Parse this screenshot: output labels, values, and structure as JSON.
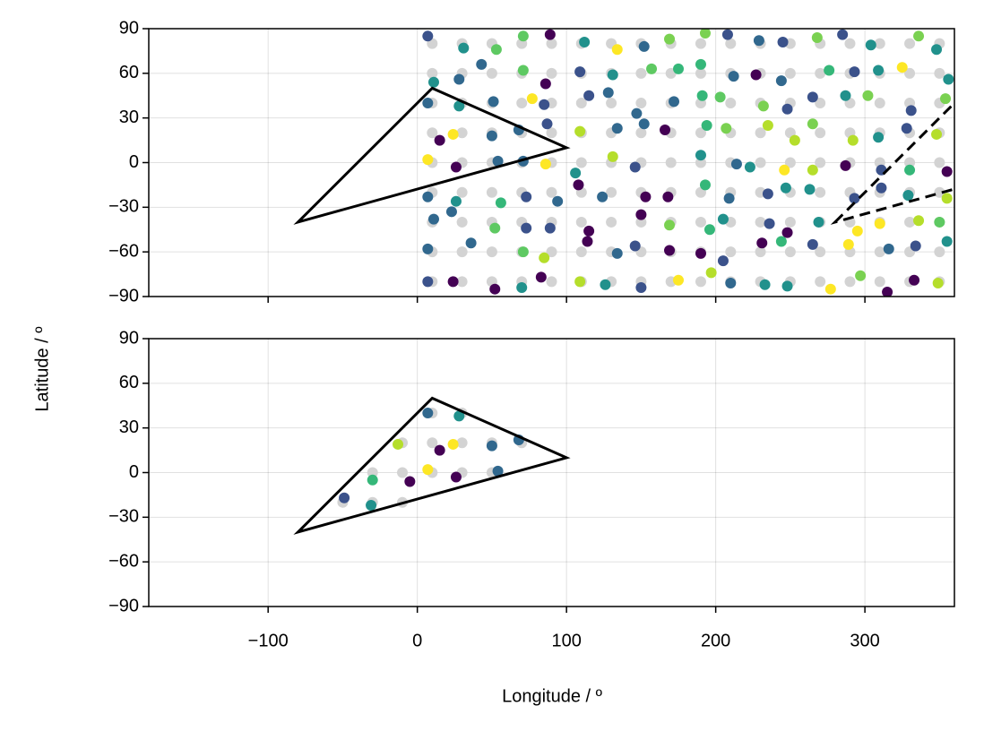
{
  "chart_data": [
    {
      "type": "scatter",
      "ylabel": "Latitude / º",
      "xlim": [
        -180,
        360
      ],
      "ylim": [
        -90,
        90
      ],
      "xticks": [
        {
          "value": -100,
          "label": "−100"
        },
        0,
        100,
        200,
        300
      ],
      "yticks": [
        {
          "value": -90,
          "label": "−90"
        },
        {
          "value": -60,
          "label": "−60"
        },
        {
          "value": -30,
          "label": "−30"
        },
        0,
        30,
        60,
        90
      ],
      "xticklabels": false,
      "grid": true,
      "series": [
        {
          "color": "#d3d3d3",
          "x": [
            10,
            30,
            50,
            70,
            90,
            110,
            130,
            150,
            170,
            190,
            210,
            230,
            250,
            270,
            290,
            310,
            330,
            350,
            10,
            30,
            50,
            70,
            90,
            110,
            130,
            150,
            170,
            190,
            210,
            230,
            250,
            270,
            290,
            310,
            330,
            350,
            10,
            30,
            50,
            70,
            90,
            110,
            130,
            150,
            170,
            190,
            210,
            230,
            250,
            270,
            290,
            310,
            330,
            350,
            10,
            30,
            50,
            70,
            90,
            110,
            130,
            150,
            170,
            190,
            210,
            230,
            250,
            270,
            290,
            310,
            330,
            350,
            10,
            30,
            50,
            70,
            90,
            110,
            130,
            150,
            170,
            190,
            210,
            230,
            250,
            270,
            290,
            310,
            330,
            350,
            10,
            30,
            50,
            70,
            90,
            110,
            130,
            150,
            170,
            190,
            210,
            230,
            250,
            270,
            290,
            310,
            330,
            350,
            10,
            30,
            50,
            70,
            90,
            110,
            130,
            150,
            170,
            190,
            210,
            230,
            250,
            270,
            290,
            310,
            330,
            350,
            10,
            30,
            50,
            70,
            90,
            110,
            130,
            150,
            170,
            190,
            210,
            230,
            250,
            270,
            290,
            310,
            330,
            350,
            10,
            30,
            50,
            70,
            90,
            110,
            130,
            150,
            170,
            190,
            210,
            230,
            250,
            270,
            290,
            310,
            330,
            350
          ],
          "values": [
            80,
            80,
            80,
            80,
            80,
            80,
            80,
            80,
            80,
            80,
            80,
            80,
            80,
            80,
            80,
            80,
            80,
            80,
            60,
            60,
            60,
            60,
            60,
            60,
            60,
            60,
            60,
            60,
            60,
            60,
            60,
            60,
            60,
            60,
            60,
            60,
            40,
            40,
            40,
            40,
            40,
            40,
            40,
            40,
            40,
            40,
            40,
            40,
            40,
            40,
            40,
            40,
            40,
            40,
            20,
            20,
            20,
            20,
            20,
            20,
            20,
            20,
            20,
            20,
            20,
            20,
            20,
            20,
            20,
            20,
            20,
            20,
            0,
            0,
            0,
            0,
            0,
            0,
            0,
            0,
            0,
            0,
            0,
            0,
            0,
            0,
            0,
            0,
            0,
            0,
            -20,
            -20,
            -20,
            -20,
            -20,
            -20,
            -20,
            -20,
            -20,
            -20,
            -20,
            -20,
            -20,
            -20,
            -20,
            -20,
            -20,
            -20,
            -40,
            -40,
            -40,
            -40,
            -40,
            -40,
            -40,
            -40,
            -40,
            -40,
            -40,
            -40,
            -40,
            -40,
            -40,
            -40,
            -40,
            -40,
            -60,
            -60,
            -60,
            -60,
            -60,
            -60,
            -60,
            -60,
            -60,
            -60,
            -60,
            -60,
            -60,
            -60,
            -60,
            -60,
            -60,
            -60,
            -80,
            -80,
            -80,
            -80,
            -80,
            -80,
            -80,
            -80,
            -80,
            -80,
            -80,
            -80,
            -80,
            -80,
            -80,
            -80,
            -80,
            -80
          ]
        },
        {
          "color": "#440154",
          "x": [
            15,
            26,
            24,
            52,
            89,
            86,
            83,
            108,
            115,
            114,
            166,
            153,
            150,
            168,
            169,
            190,
            227,
            231,
            248,
            287,
            315,
            333,
            355
          ],
          "values": [
            15,
            -3,
            -80,
            -85,
            86,
            53,
            -77,
            -15,
            -46,
            -53,
            22,
            -23,
            -35,
            -23,
            -59,
            -61,
            59,
            -54,
            -47,
            -2,
            -87,
            -79,
            -6
          ]
        },
        {
          "color": "#3b528b",
          "x": [
            7,
            7,
            73,
            73,
            85,
            87,
            89,
            109,
            115,
            146,
            146,
            150,
            208,
            205,
            235,
            236,
            245,
            248,
            265,
            265,
            285,
            293,
            293,
            311,
            311,
            331,
            328,
            334
          ],
          "values": [
            85,
            -80,
            -23,
            -44,
            39,
            26,
            -44,
            61,
            45,
            -3,
            -56,
            -84,
            86,
            -66,
            -21,
            -41,
            81,
            36,
            44,
            -55,
            86,
            61,
            -24,
            -5,
            -17,
            35,
            23,
            -56
          ]
        },
        {
          "color": "#31688e",
          "x": [
            7,
            7,
            11,
            7,
            28,
            23,
            43,
            51,
            50,
            54,
            36,
            68,
            71,
            94,
            128,
            134,
            124,
            134,
            152,
            147,
            152,
            172,
            212,
            214,
            209,
            210,
            229,
            244,
            316
          ],
          "values": [
            40,
            -23,
            -38,
            -58,
            56,
            -33,
            66,
            41,
            18,
            1,
            -54,
            22,
            1,
            -26,
            47,
            23,
            -23,
            -61,
            78,
            33,
            26,
            41,
            58,
            -1,
            -24,
            -81,
            82,
            55,
            -58
          ]
        },
        {
          "color": "#21918c",
          "x": [
            11,
            31,
            28,
            26,
            70,
            112,
            106,
            131,
            126,
            190,
            205,
            223,
            233,
            247,
            248,
            263,
            269,
            287,
            304,
            309,
            309,
            329,
            348,
            356,
            355
          ],
          "values": [
            54,
            77,
            38,
            -26,
            -84,
            81,
            -7,
            59,
            -82,
            5,
            -38,
            -3,
            -82,
            -17,
            -83,
            -18,
            -40,
            45,
            79,
            62,
            17,
            -22,
            76,
            56,
            -53
          ]
        },
        {
          "color": "#35b779",
          "x": [
            56,
            175,
            190,
            191,
            194,
            193,
            196,
            244,
            276,
            330
          ],
          "values": [
            -27,
            63,
            66,
            45,
            25,
            -15,
            -45,
            -53,
            62,
            -5
          ]
        },
        {
          "color": "#5ec962",
          "x": [
            53,
            52,
            71,
            71,
            71,
            157,
            203,
            350
          ],
          "values": [
            76,
            -44,
            85,
            62,
            -60,
            63,
            44,
            -40
          ]
        },
        {
          "color": "#7ad151",
          "x": [
            169,
            169,
            193,
            207,
            232,
            268,
            265,
            297,
            302,
            336,
            354
          ],
          "values": [
            83,
            -42,
            87,
            23,
            38,
            84,
            26,
            -76,
            45,
            85,
            43
          ]
        },
        {
          "color": "#b5de2b",
          "x": [
            85,
            109,
            109,
            131,
            197,
            235,
            253,
            265,
            292,
            336,
            348,
            355,
            349
          ],
          "values": [
            -64,
            21,
            -80,
            4,
            -74,
            25,
            15,
            -5,
            15,
            -39,
            19,
            -24,
            -81
          ]
        },
        {
          "color": "#fde725",
          "x": [
            7,
            24,
            77,
            86,
            134,
            175,
            246,
            277,
            295,
            289,
            310,
            325
          ],
          "values": [
            2,
            19,
            43,
            -1,
            76,
            -79,
            -5,
            -85,
            -46,
            -55,
            -41,
            64
          ]
        }
      ],
      "polygons": [
        {
          "x": [
            -80,
            10,
            100
          ],
          "y": [
            -40,
            50,
            10
          ],
          "color": "#000000",
          "dashed": false
        },
        {
          "x": [
            280,
            370,
            460
          ],
          "y": [
            -40,
            50,
            10
          ],
          "color": "#000000",
          "dashed": true
        }
      ]
    },
    {
      "type": "scatter",
      "xlabel": "Longitude / º",
      "xlim": [
        -180,
        360
      ],
      "ylim": [
        -90,
        90
      ],
      "xticks": [
        {
          "value": -100,
          "label": "−100"
        },
        0,
        100,
        200,
        300
      ],
      "yticks": [
        {
          "value": -90,
          "label": "−90"
        },
        {
          "value": -60,
          "label": "−60"
        },
        {
          "value": -30,
          "label": "−30"
        },
        0,
        30,
        60,
        90
      ],
      "xticklabels": true,
      "grid": true,
      "series": [
        {
          "color": "#d3d3d3",
          "x": [
            -50,
            -30,
            -10,
            -30,
            -10,
            10,
            30,
            50,
            -10,
            10,
            30,
            50,
            70,
            10,
            30
          ],
          "values": [
            -20,
            -20,
            -20,
            0,
            0,
            0,
            0,
            0,
            20,
            20,
            20,
            20,
            20,
            40,
            40
          ]
        },
        {
          "color": "#440154",
          "x": [
            15,
            26,
            -5
          ],
          "values": [
            15,
            -3,
            -6
          ]
        },
        {
          "color": "#3b528b",
          "x": [
            -49
          ],
          "values": [
            -17
          ]
        },
        {
          "color": "#31688e",
          "x": [
            7,
            50,
            54,
            68
          ],
          "values": [
            40,
            18,
            1,
            22
          ]
        },
        {
          "color": "#21918c",
          "x": [
            28,
            -31
          ],
          "values": [
            38,
            -22
          ]
        },
        {
          "color": "#35b779",
          "x": [
            -30
          ],
          "values": [
            -5
          ]
        },
        {
          "color": "#b5de2b",
          "x": [
            -13
          ],
          "values": [
            19
          ]
        },
        {
          "color": "#fde725",
          "x": [
            7,
            24
          ],
          "values": [
            2,
            19
          ]
        }
      ],
      "polygons": [
        {
          "x": [
            -80,
            10,
            100
          ],
          "y": [
            -40,
            50,
            10
          ],
          "color": "#000000",
          "dashed": false
        }
      ]
    }
  ]
}
